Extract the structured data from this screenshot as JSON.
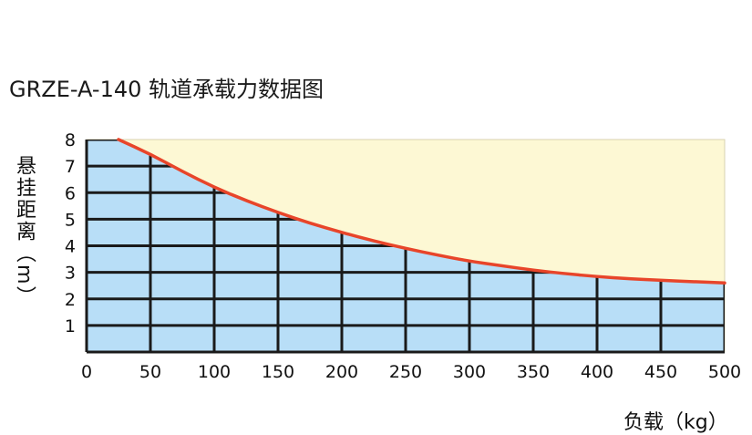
{
  "title": "GRZE-A-140 轨道承载力数据图",
  "colors": {
    "safe_fill": "#b8def7",
    "over_fill": "#fdf8d4",
    "curve": "#e8452a",
    "grid": "#1a1a1a"
  },
  "chart_data": {
    "type": "area",
    "title": "GRZE-A-140 轨道承载力数据图",
    "xlabel": "负载（kg）",
    "ylabel": "悬挂距离（m）",
    "xlim": [
      0,
      500
    ],
    "ylim": [
      0,
      8
    ],
    "x_ticks": [
      "0",
      "50",
      "100",
      "150",
      "200",
      "250",
      "300",
      "350",
      "400",
      "450",
      "500"
    ],
    "y_ticks": [
      "1",
      "2",
      "3",
      "4",
      "5",
      "6",
      "7",
      "8"
    ],
    "grid": true,
    "series": [
      {
        "x": [
          25,
          50,
          75,
          100,
          125,
          150,
          175,
          200,
          225,
          250,
          275,
          300,
          325,
          350,
          375,
          400,
          425,
          450,
          475,
          500
        ],
        "values": [
          8.0,
          7.45,
          6.8,
          6.2,
          5.7,
          5.25,
          4.85,
          4.5,
          4.18,
          3.9,
          3.65,
          3.42,
          3.25,
          3.08,
          2.95,
          2.84,
          2.76,
          2.7,
          2.65,
          2.6
        ]
      }
    ]
  }
}
